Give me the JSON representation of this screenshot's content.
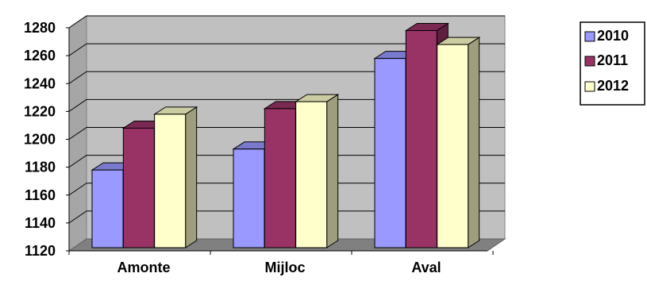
{
  "chart_data": {
    "type": "bar",
    "categories": [
      "Amonte",
      "Mijloc",
      "Aval"
    ],
    "series": [
      {
        "name": "2010",
        "values": [
          1178,
          1193,
          1258
        ],
        "color": "#9999ff"
      },
      {
        "name": "2011",
        "values": [
          1208,
          1222,
          1278
        ],
        "color": "#993366"
      },
      {
        "name": "2012",
        "values": [
          1218,
          1227,
          1268
        ],
        "color": "#ffffcc"
      }
    ],
    "ylim": [
      1120,
      1280
    ],
    "yticks": [
      "1120",
      "1140",
      "1160",
      "1180",
      "1200",
      "1220",
      "1240",
      "1260",
      "1280"
    ],
    "grid": true,
    "three_d": true,
    "plot_background": "#c0c0c0",
    "floor_color": "#808080",
    "legend_position": "right"
  }
}
